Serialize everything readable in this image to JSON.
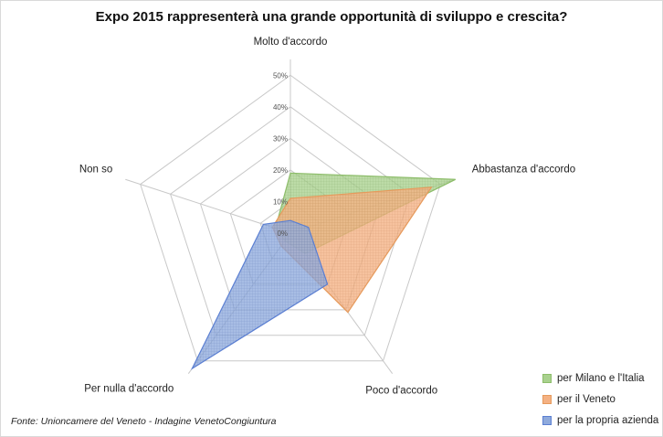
{
  "chart_data": {
    "type": "radar",
    "title": "Expo 2015 rappresenterà una grande opportunità di sviluppo e crescita?",
    "categories": [
      "Molto d'accordo",
      "Abbastanza d'accordo",
      "Poco d'accordo",
      "Per nulla d'accordo",
      "Non so"
    ],
    "rlim": [
      0,
      55
    ],
    "ticks": [
      "0%",
      "10%",
      "20%",
      "30%",
      "40%",
      "50%"
    ],
    "tick_values": [
      0,
      10,
      20,
      30,
      40,
      50
    ],
    "grid": true,
    "legend_position": "bottom-right",
    "series": [
      {
        "name": "per Milano e l'Italia",
        "values": [
          19,
          55,
          8,
          3,
          5
        ],
        "color": "#8dbd6a",
        "fill": "#a9d18e"
      },
      {
        "name": "per il Veneto",
        "values": [
          11,
          47,
          31,
          5,
          6
        ],
        "color": "#e69a5c",
        "fill": "#f4b183"
      },
      {
        "name": "per la propria azienda",
        "values": [
          4,
          6,
          20,
          53,
          9
        ],
        "color": "#5b7fd2",
        "fill": "#8faadc"
      }
    ]
  },
  "source_note": "Fonte: Unioncamere del Veneto - Indagine VenetoCongiuntura"
}
